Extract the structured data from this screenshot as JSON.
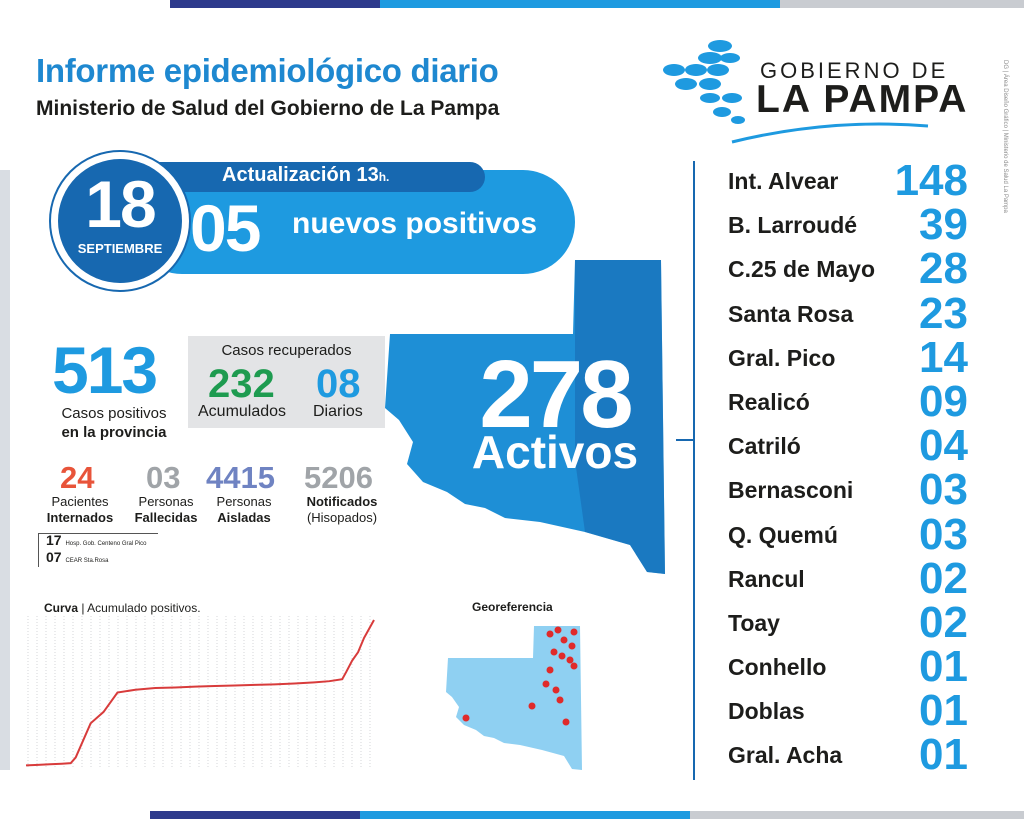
{
  "header": {
    "title": "Informe epidemiológico diario",
    "subtitle": "Ministerio de Salud del Gobierno de La Pampa"
  },
  "logo": {
    "line1": "GOBIERNO DE",
    "line2": "LA PAMPA",
    "icon": "pills-map-icon"
  },
  "credit": "DG | Área Diseño Gráfico | Ministerio de Salud La Pampa",
  "update": {
    "label": "Actualización 13",
    "suffix": "h.",
    "day": "18",
    "month": "SEPTIEMBRE",
    "new_positive_count": "05",
    "new_positive_label": "nuevos positivos"
  },
  "active": {
    "count": "278",
    "label": "Activos"
  },
  "positives": {
    "count": "513",
    "label_line1": "Casos positivos",
    "label_line2": "en la provincia"
  },
  "recovered": {
    "title": "Casos recuperados",
    "accumulated": "232",
    "accumulated_label": "Acumulados",
    "daily": "08",
    "daily_label": "Diarios"
  },
  "stats": [
    {
      "value": "24",
      "line1": "Pacientes",
      "line2": "Internados",
      "color": "#e8543a"
    },
    {
      "value": "03",
      "line1": "Personas",
      "line2": "Fallecidas",
      "color": "#a0a4a8"
    },
    {
      "value": "4415",
      "line1": "Personas",
      "line2": "Aisladas",
      "color": "#6f83c2"
    },
    {
      "value": "5206",
      "line1": "Notificados",
      "line2": "(Hisopados)",
      "color": "#a0a4a8"
    }
  ],
  "hospitals": [
    {
      "count": "17",
      "name": "Hosp. Gob. Centeno Gral Pico"
    },
    {
      "count": "07",
      "name": "CEAR Sta.Rosa"
    }
  ],
  "curve": {
    "title_bold": "Curva",
    "title_rest": " | Acumulado positivos."
  },
  "chart_data": {
    "type": "line",
    "title": "Curva | Acumulado positivos.",
    "xlabel": "",
    "ylabel": "",
    "grid": true,
    "values": [
      2,
      4,
      6,
      8,
      10,
      30,
      150,
      190,
      258,
      268,
      274,
      276,
      279,
      281,
      283,
      285,
      287,
      290,
      294,
      298,
      305,
      330,
      370,
      400,
      450,
      513
    ],
    "x_positions": [
      0,
      12,
      24,
      36,
      45,
      50,
      65,
      78,
      92,
      110,
      130,
      150,
      170,
      190,
      210,
      230,
      250,
      270,
      290,
      305,
      318,
      322,
      328,
      334,
      340,
      350
    ],
    "xlim": [
      0,
      350
    ],
    "ylim": [
      0,
      520
    ]
  },
  "geo": {
    "title": "Georeferencia"
  },
  "towns": [
    {
      "name": "Int. Alvear",
      "count": "148"
    },
    {
      "name": "B. Larroudé",
      "count": "39"
    },
    {
      "name": "C.25 de Mayo",
      "count": "28"
    },
    {
      "name": "Santa Rosa",
      "count": "23"
    },
    {
      "name": "Gral. Pico",
      "count": "14"
    },
    {
      "name": "Realicó",
      "count": "09"
    },
    {
      "name": "Catriló",
      "count": "04"
    },
    {
      "name": "Bernasconi",
      "count": "03"
    },
    {
      "name": "Q. Quemú",
      "count": "03"
    },
    {
      "name": "Rancul",
      "count": "02"
    },
    {
      "name": "Toay",
      "count": "02"
    },
    {
      "name": "Conhello",
      "count": "01"
    },
    {
      "name": "Doblas",
      "count": "01"
    },
    {
      "name": "Gral. Acha",
      "count": "01"
    }
  ],
  "colors": {
    "primary": "#1e9ae0",
    "dark_blue": "#1768b0",
    "green": "#1e9b50",
    "red": "#e8543a",
    "curve": "#d83b3b"
  }
}
